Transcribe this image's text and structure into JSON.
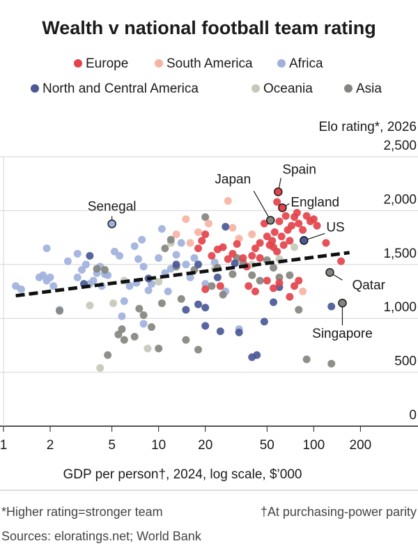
{
  "chart_data": {
    "type": "scatter",
    "title": "Wealth v national football team rating",
    "y_label": "Elo rating*, 2026",
    "x_label": "GDP per person†, 2024, log scale, $’000",
    "footnotes": [
      "*Higher rating=stronger team",
      "†At purchasing-power parity"
    ],
    "source": "Sources: eloratings.net; World Bank",
    "x_log": true,
    "grid": true,
    "xlim": [
      1,
      470
    ],
    "ylim": [
      0,
      2500
    ],
    "xticks": [
      1,
      2,
      5,
      10,
      20,
      50,
      100,
      200
    ],
    "yticks": [
      0,
      500,
      {
        "value": 1000,
        "label": "1,000"
      },
      {
        "value": 1500,
        "label": "1,500"
      },
      {
        "value": 2000,
        "label": "2,000"
      },
      {
        "value": 2500,
        "label": "2,500"
      }
    ],
    "series": [
      {
        "name": "Africa",
        "color": "#9fb1dc",
        "x": [
          1.2,
          1.3,
          1.7,
          1.8,
          1.9,
          1.9,
          2,
          2.1,
          2.3,
          2.6,
          3,
          3,
          3.2,
          3.4,
          3.6,
          3.8,
          4,
          4.2,
          4.3,
          4.7,
          5.2,
          5.6,
          6,
          6.5,
          7,
          7.4,
          7.8,
          8,
          8.6,
          9,
          10,
          10.5,
          11,
          12,
          13,
          14,
          15,
          16,
          17,
          20,
          23,
          8,
          11.5,
          7.2,
          5.8,
          27,
          33,
          4.5
        ],
        "y": [
          1300,
          1270,
          1380,
          1400,
          1350,
          1650,
          1380,
          1300,
          1080,
          1530,
          1600,
          1380,
          1450,
          1500,
          1320,
          1350,
          1420,
          1480,
          1300,
          1400,
          1620,
          1580,
          1160,
          1300,
          1670,
          1550,
          1730,
          1480,
          1260,
          1320,
          1560,
          1830,
          1420,
          1460,
          1590,
          1700,
          1500,
          1380,
          1560,
          1320,
          1520,
          950,
          1250,
          1330,
          1020,
          1250,
          900,
          1410
        ]
      },
      {
        "name": "Oceania",
        "color": "#c6c9b9",
        "x": [
          3.6,
          4.2,
          5.1,
          6,
          8.5,
          10,
          12,
          23,
          40,
          60,
          75
        ],
        "y": [
          1120,
          540,
          1140,
          1350,
          720,
          1340,
          1700,
          1460,
          1500,
          1550,
          1660
        ]
      },
      {
        "name": "Asia",
        "color": "#858580",
        "x": [
          2.3,
          4,
          4.7,
          5.5,
          5.8,
          6,
          7,
          7.5,
          8,
          9,
          10,
          10.5,
          11,
          12,
          13,
          14,
          15,
          17,
          18,
          20,
          22,
          24,
          26,
          30,
          32,
          35,
          40,
          45,
          50,
          55,
          60,
          70,
          80,
          90,
          130,
          4.5
        ],
        "y": [
          1070,
          1460,
          660,
          850,
          900,
          800,
          830,
          1090,
          1030,
          920,
          720,
          1140,
          1650,
          1730,
          1480,
          1180,
          800,
          1450,
          710,
          1940,
          1300,
          1470,
          1220,
          1410,
          1560,
          1520,
          1400,
          1350,
          1540,
          1470,
          1380,
          1400,
          1080,
          620,
          580,
          1450
        ]
      },
      {
        "name": "South America",
        "color": "#f7b3a3",
        "x": [
          15,
          18,
          21,
          28,
          30,
          33,
          40,
          13,
          85,
          16
        ],
        "y": [
          1920,
          1800,
          1880,
          2090,
          1840,
          1740,
          1780,
          1780,
          1250,
          1700
        ]
      },
      {
        "name": "North and Central America",
        "color": "#4b5896",
        "x": [
          3.6,
          3.3,
          8.6,
          13,
          15,
          18,
          20,
          20,
          24,
          25,
          27,
          31,
          33,
          40,
          43,
          48,
          55,
          60,
          130,
          18
        ],
        "y": [
          1580,
          1320,
          1370,
          1500,
          1080,
          1130,
          930,
          1100,
          1380,
          880,
          1850,
          1510,
          870,
          640,
          660,
          970,
          1150,
          1290,
          1110,
          1500
        ]
      },
      {
        "name": "Europe",
        "color": "#e3434b",
        "x": [
          19,
          20,
          18,
          22,
          24,
          26,
          28,
          30,
          32,
          35,
          37,
          40,
          42,
          45,
          48,
          50,
          52,
          54,
          56,
          58,
          60,
          62,
          64,
          66,
          68,
          70,
          72,
          75,
          78,
          80,
          85,
          90,
          95,
          100,
          105,
          55,
          45,
          38,
          42,
          50,
          55,
          60,
          70,
          75,
          80,
          120,
          150,
          25,
          20,
          58
        ],
        "y": [
          1720,
          1780,
          1650,
          1580,
          1640,
          1660,
          1550,
          1600,
          1690,
          1560,
          1480,
          1580,
          1650,
          1700,
          1880,
          1760,
          1680,
          1720,
          1800,
          1620,
          1900,
          1760,
          1680,
          1950,
          1820,
          1720,
          1860,
          1940,
          1980,
          1880,
          1820,
          1950,
          1900,
          1920,
          1860,
          1660,
          1560,
          1300,
          1250,
          1350,
          1280,
          1330,
          1200,
          1300,
          1350,
          1700,
          1530,
          1300,
          1270,
          2080
        ]
      }
    ],
    "legend_order": [
      "Europe",
      "South America",
      "Africa",
      "North and Central America",
      "Oceania",
      "Asia"
    ],
    "trend_line": {
      "x": [
        1.2,
        170
      ],
      "y": [
        1210,
        1610
      ]
    },
    "annotations": [
      {
        "label": "Senegal",
        "x": 5,
        "y": 1877,
        "color": "#9fb1dc"
      },
      {
        "label": "Japan",
        "x": 52.6,
        "y": 1910,
        "color": "#858580"
      },
      {
        "label": "Spain",
        "x": 59,
        "y": 2174,
        "color": "#e3434b"
      },
      {
        "label": "England",
        "x": 62.8,
        "y": 2026,
        "color": "#e3434b"
      },
      {
        "label": "US",
        "x": 86.5,
        "y": 1723,
        "color": "#4b5896"
      },
      {
        "label": "Qatar",
        "x": 127,
        "y": 1426,
        "color": "#858580"
      },
      {
        "label": "Singapore",
        "x": 153,
        "y": 1142,
        "color": "#858580"
      }
    ]
  }
}
